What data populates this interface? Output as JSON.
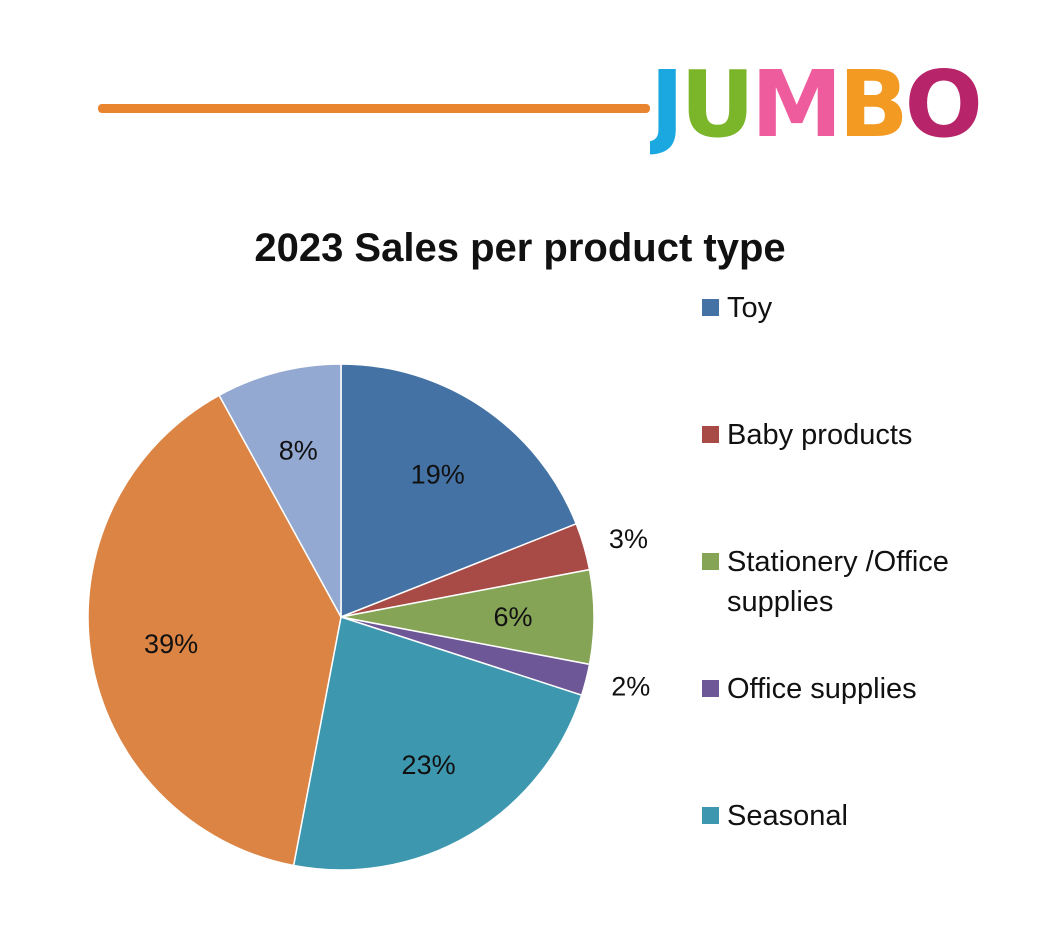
{
  "header": {
    "rule_color": "#E8852E",
    "logo": {
      "text": "JUMBO",
      "letter_colors": [
        "#1BA8E0",
        "#7BB52A",
        "#EF5C9D",
        "#F39A22",
        "#B8246A"
      ]
    }
  },
  "chart_data": {
    "type": "pie",
    "title": "2023 Sales per product type",
    "legend_position": "right",
    "start_angle_deg": 0,
    "direction": "clockwise",
    "slices": [
      {
        "name": "Toy",
        "value": 19,
        "label": "19%",
        "color": "#4472A4"
      },
      {
        "name": "Baby products",
        "value": 3,
        "label": "3%",
        "color": "#A84A45"
      },
      {
        "name": "Stationery /Office supplies",
        "value": 6,
        "label": "6%",
        "color": "#86A456"
      },
      {
        "name": "Office supplies",
        "value": 2,
        "label": "2%",
        "color": "#6E5796"
      },
      {
        "name": "Seasonal",
        "value": 23,
        "label": "23%",
        "color": "#3D97AE"
      },
      {
        "name": "",
        "value": 39,
        "label": "39%",
        "color": "#DB8444"
      },
      {
        "name": "",
        "value": 8,
        "label": "8%",
        "color": "#93A9D2"
      }
    ]
  }
}
